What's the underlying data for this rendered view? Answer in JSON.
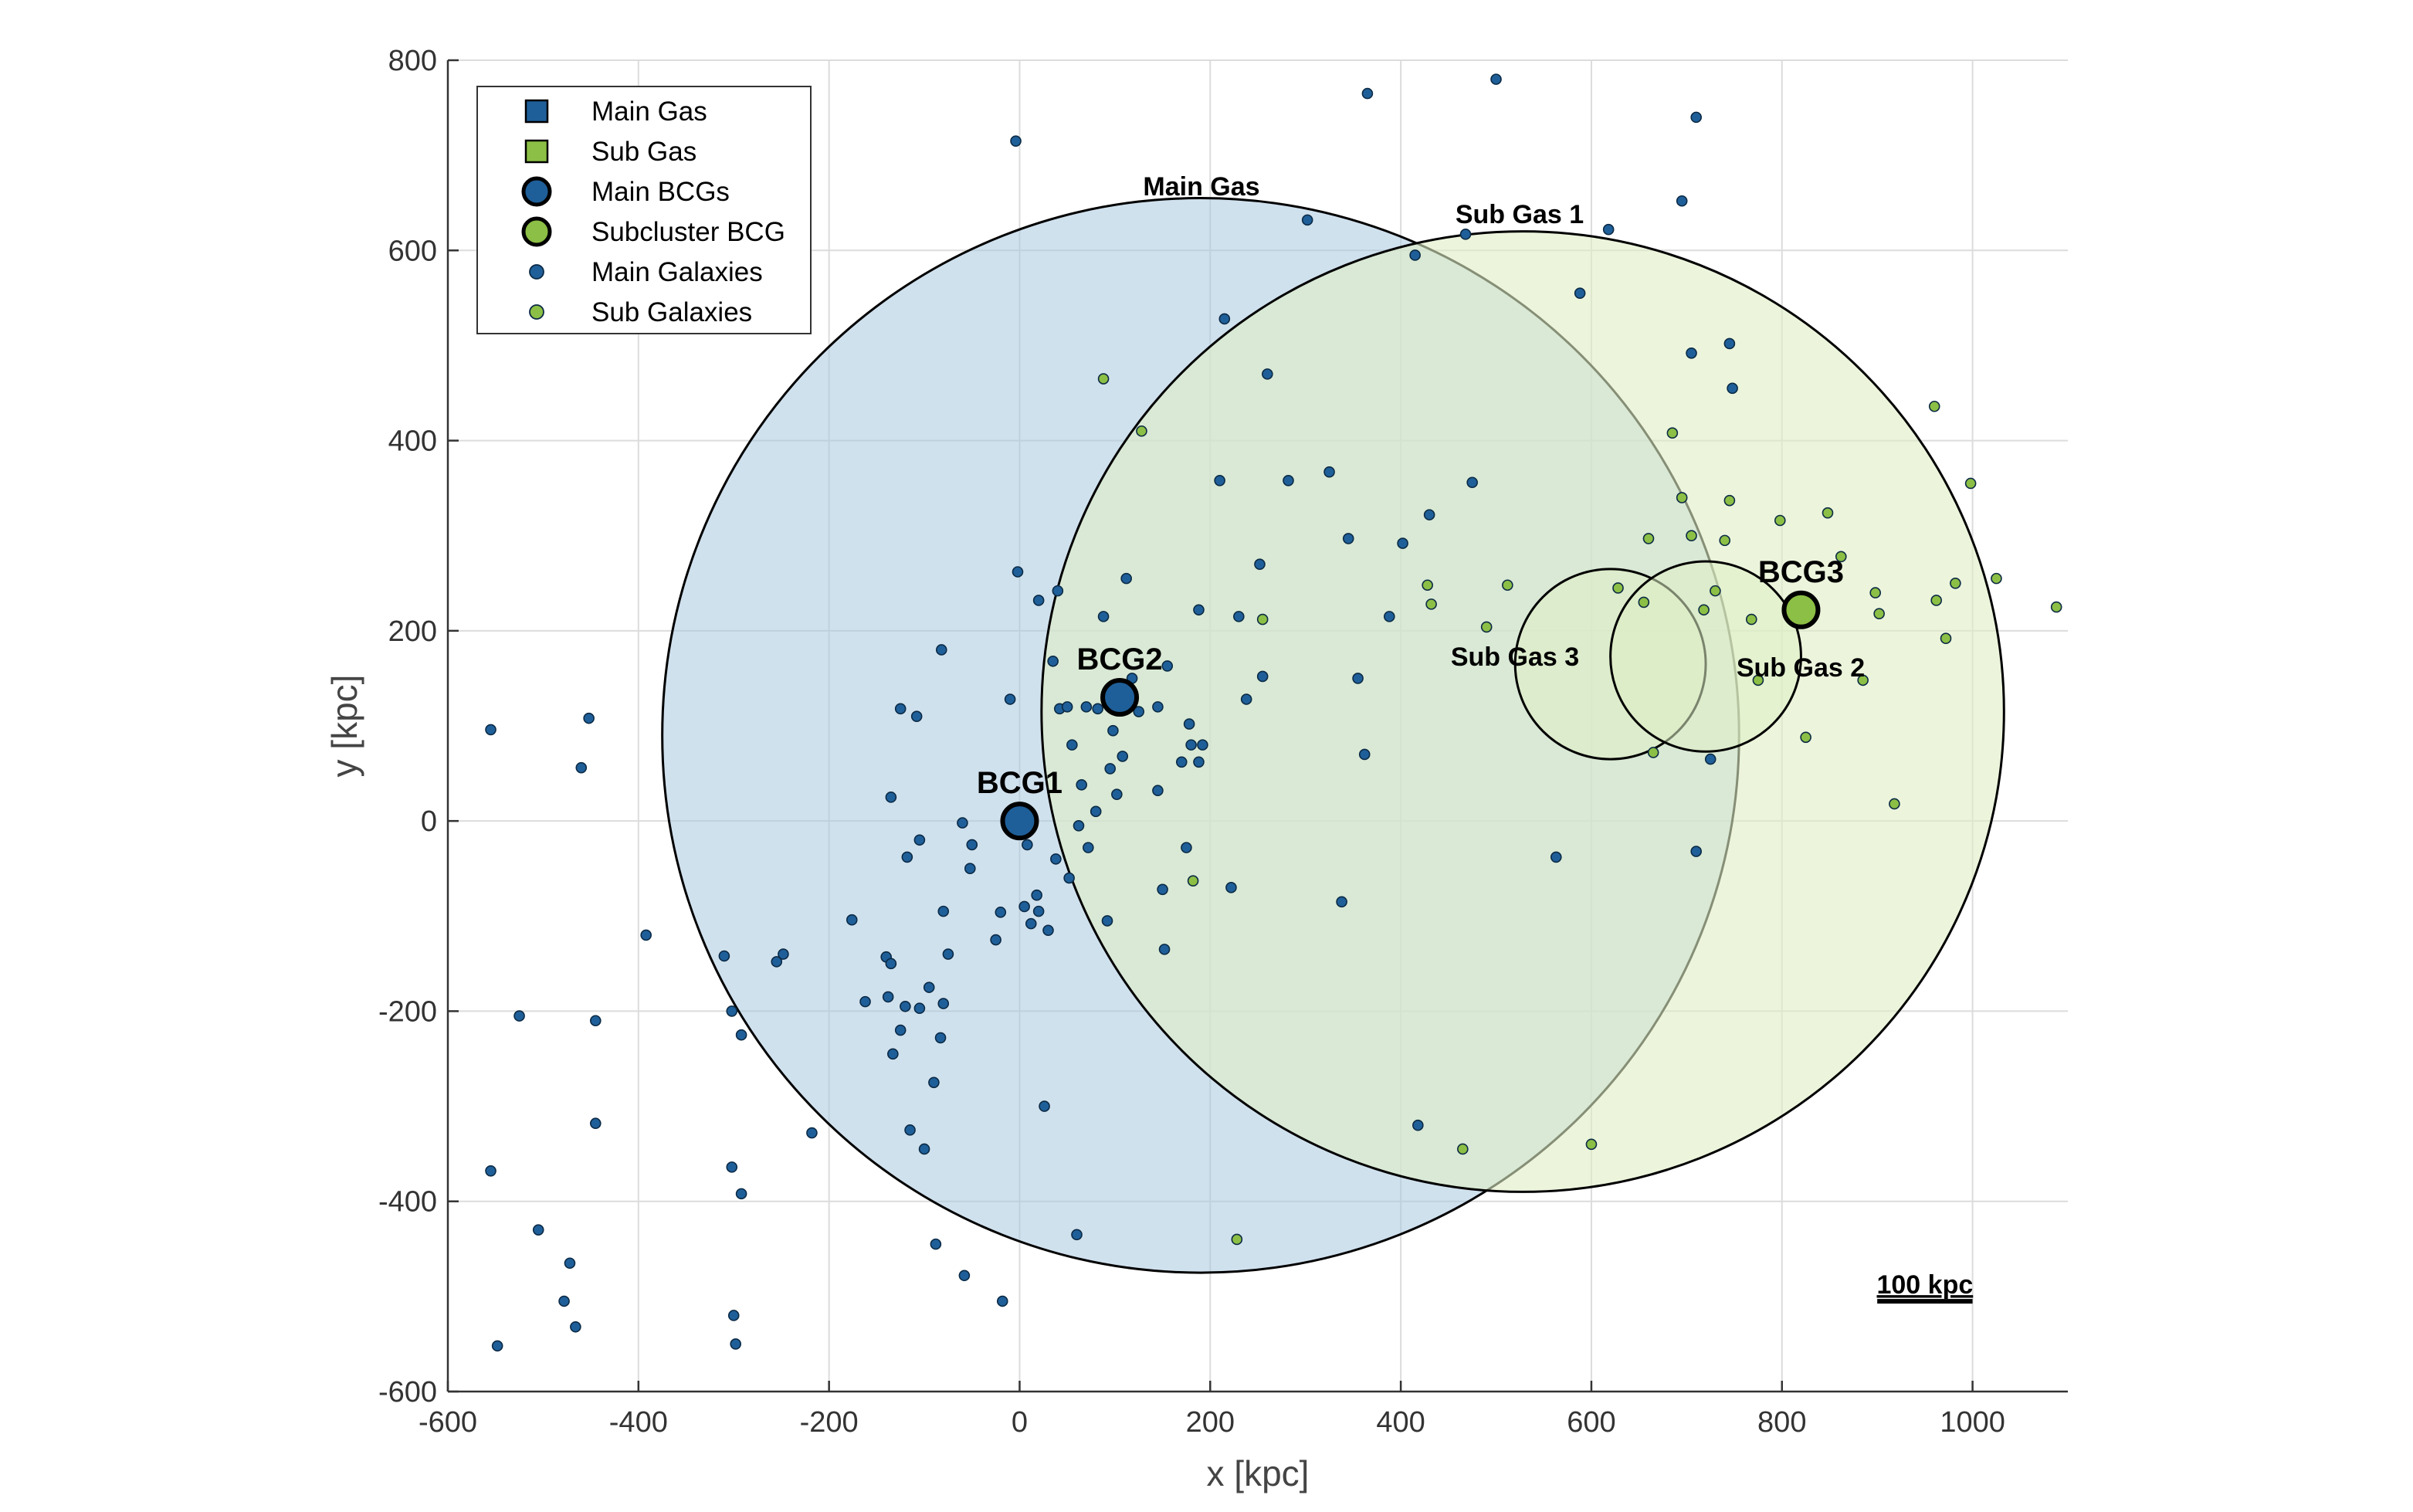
{
  "chart_data": {
    "type": "scatter",
    "title": "",
    "xlabel": "x [kpc]",
    "ylabel": "y [kpc]",
    "xlim": [
      -600,
      1100
    ],
    "ylim": [
      -600,
      800
    ],
    "xticks": [
      -600,
      -400,
      -200,
      0,
      200,
      400,
      600,
      800,
      1000
    ],
    "yticks": [
      -600,
      -400,
      -200,
      0,
      200,
      400,
      600,
      800
    ],
    "xtick_labels": [
      "-600",
      "-400",
      "-200",
      "0",
      "200",
      "400",
      "600",
      "800",
      "1000"
    ],
    "ytick_labels": [
      "-600",
      "-400",
      "-200",
      "0",
      "200",
      "400",
      "600",
      "800"
    ],
    "grid": true,
    "legend_position": "top-left",
    "colors": {
      "main": "#1f5f99",
      "sub": "#8cbf45",
      "main_fill": "#a9c8e0",
      "sub_fill": "#dfeec4",
      "edge": "#000000"
    },
    "legend": [
      {
        "label": "Main Gas",
        "marker": "square",
        "color": "#1f5f99"
      },
      {
        "label": "Sub Gas",
        "marker": "square",
        "color": "#8cbf45"
      },
      {
        "label": "Main BCGs",
        "marker": "circle-large",
        "color": "#1f5f99"
      },
      {
        "label": "Subcluster BCG",
        "marker": "circle-large",
        "color": "#8cbf45"
      },
      {
        "label": "Main Galaxies",
        "marker": "circle-small",
        "color": "#1f5f99"
      },
      {
        "label": "Sub Galaxies",
        "marker": "circle-small",
        "color": "#8cbf45"
      }
    ],
    "gas_regions": [
      {
        "label": "Main Gas",
        "group": "main",
        "cx": 190,
        "cy": 90,
        "r": 565
      },
      {
        "label": "Sub Gas 1",
        "group": "sub",
        "cx": 528,
        "cy": 115,
        "r": 505
      },
      {
        "label": "Sub Gas 3",
        "group": "sub",
        "cx": 620,
        "cy": 165,
        "r": 100
      },
      {
        "label": "Sub Gas 2",
        "group": "sub",
        "cx": 720,
        "cy": 173,
        "r": 100
      }
    ],
    "bcgs": [
      {
        "label": "BCG1",
        "group": "main",
        "x": 0,
        "y": 0
      },
      {
        "label": "BCG2",
        "group": "main",
        "x": 105,
        "y": 130
      },
      {
        "label": "BCG3",
        "group": "sub",
        "x": 820,
        "y": 222
      }
    ],
    "main_galaxies": [
      [
        -555,
        96
      ],
      [
        -460,
        56
      ],
      [
        -452,
        108
      ],
      [
        -392,
        -120
      ],
      [
        -525,
        -205
      ],
      [
        -445,
        -210
      ],
      [
        -445,
        -318
      ],
      [
        -555,
        -368
      ],
      [
        -505,
        -430
      ],
      [
        -472,
        -465
      ],
      [
        -478,
        -505
      ],
      [
        -466,
        -532
      ],
      [
        -548,
        -552
      ],
      [
        -310,
        -142
      ],
      [
        -302,
        -200
      ],
      [
        -292,
        -225
      ],
      [
        -302,
        -364
      ],
      [
        -292,
        -392
      ],
      [
        -300,
        -520
      ],
      [
        -298,
        -550
      ],
      [
        -248,
        -140
      ],
      [
        -255,
        -148
      ],
      [
        -218,
        -328
      ],
      [
        -176,
        -104
      ],
      [
        -162,
        -190
      ],
      [
        -140,
        -143
      ],
      [
        -135,
        -150
      ],
      [
        -138,
        -185
      ],
      [
        -133,
        -245
      ],
      [
        -125,
        -220
      ],
      [
        -120,
        -195
      ],
      [
        -115,
        -325
      ],
      [
        -105,
        -197
      ],
      [
        -100,
        -345
      ],
      [
        -95,
        -175
      ],
      [
        -90,
        -275
      ],
      [
        -88,
        -445
      ],
      [
        -83,
        -228
      ],
      [
        -80,
        -192
      ],
      [
        -75,
        -140
      ],
      [
        -58,
        -478
      ],
      [
        -18,
        -505
      ],
      [
        -135,
        25
      ],
      [
        -125,
        118
      ],
      [
        -118,
        -38
      ],
      [
        -108,
        110
      ],
      [
        -105,
        -20
      ],
      [
        -82,
        180
      ],
      [
        -80,
        -95
      ],
      [
        -60,
        -2
      ],
      [
        -50,
        -25
      ],
      [
        -52,
        -50
      ],
      [
        -25,
        -125
      ],
      [
        -20,
        -96
      ],
      [
        -10,
        128
      ],
      [
        -4,
        715
      ],
      [
        -2,
        262
      ],
      [
        5,
        -90
      ],
      [
        5,
        12
      ],
      [
        8,
        -25
      ],
      [
        12,
        -108
      ],
      [
        18,
        -78
      ],
      [
        20,
        -95
      ],
      [
        20,
        232
      ],
      [
        26,
        -300
      ],
      [
        30,
        -115
      ],
      [
        35,
        168
      ],
      [
        38,
        -40
      ],
      [
        40,
        242
      ],
      [
        42,
        118
      ],
      [
        50,
        120
      ],
      [
        52,
        -60
      ],
      [
        55,
        80
      ],
      [
        60,
        -435
      ],
      [
        62,
        -5
      ],
      [
        65,
        38
      ],
      [
        70,
        120
      ],
      [
        72,
        -28
      ],
      [
        80,
        10
      ],
      [
        82,
        118
      ],
      [
        88,
        215
      ],
      [
        92,
        -105
      ],
      [
        95,
        55
      ],
      [
        98,
        95
      ],
      [
        102,
        28
      ],
      [
        108,
        68
      ],
      [
        112,
        255
      ],
      [
        118,
        150
      ],
      [
        125,
        115
      ],
      [
        145,
        120
      ],
      [
        145,
        32
      ],
      [
        150,
        -72
      ],
      [
        152,
        -135
      ],
      [
        155,
        163
      ],
      [
        170,
        62
      ],
      [
        175,
        -28
      ],
      [
        178,
        102
      ],
      [
        180,
        80
      ],
      [
        188,
        62
      ],
      [
        188,
        222
      ],
      [
        192,
        80
      ],
      [
        210,
        358
      ],
      [
        215,
        528
      ],
      [
        222,
        -70
      ],
      [
        230,
        215
      ],
      [
        238,
        128
      ],
      [
        252,
        270
      ],
      [
        255,
        152
      ],
      [
        260,
        470
      ],
      [
        282,
        358
      ],
      [
        302,
        632
      ],
      [
        325,
        367
      ],
      [
        338,
        -85
      ],
      [
        345,
        297
      ],
      [
        355,
        150
      ],
      [
        362,
        70
      ],
      [
        365,
        765
      ],
      [
        388,
        215
      ],
      [
        402,
        292
      ],
      [
        415,
        595
      ],
      [
        418,
        -320
      ],
      [
        430,
        322
      ],
      [
        468,
        617
      ],
      [
        475,
        356
      ],
      [
        500,
        780
      ],
      [
        563,
        -38
      ],
      [
        588,
        555
      ],
      [
        618,
        622
      ],
      [
        695,
        652
      ],
      [
        705,
        492
      ],
      [
        710,
        740
      ],
      [
        710,
        -32
      ],
      [
        725,
        65
      ],
      [
        745,
        502
      ],
      [
        748,
        455
      ]
    ],
    "sub_galaxies": [
      [
        88,
        465
      ],
      [
        128,
        410
      ],
      [
        182,
        -63
      ],
      [
        228,
        -440
      ],
      [
        255,
        212
      ],
      [
        428,
        248
      ],
      [
        432,
        228
      ],
      [
        465,
        -345
      ],
      [
        490,
        204
      ],
      [
        512,
        248
      ],
      [
        600,
        -340
      ],
      [
        628,
        245
      ],
      [
        655,
        230
      ],
      [
        660,
        297
      ],
      [
        665,
        72
      ],
      [
        685,
        408
      ],
      [
        695,
        340
      ],
      [
        705,
        300
      ],
      [
        718,
        222
      ],
      [
        730,
        242
      ],
      [
        740,
        295
      ],
      [
        745,
        337
      ],
      [
        768,
        212
      ],
      [
        775,
        148
      ],
      [
        798,
        316
      ],
      [
        820,
        210
      ],
      [
        825,
        88
      ],
      [
        848,
        324
      ],
      [
        862,
        278
      ],
      [
        885,
        148
      ],
      [
        898,
        240
      ],
      [
        902,
        218
      ],
      [
        918,
        18
      ],
      [
        960,
        436
      ],
      [
        962,
        232
      ],
      [
        972,
        192
      ],
      [
        982,
        250
      ],
      [
        998,
        355
      ],
      [
        1025,
        255
      ],
      [
        1088,
        225
      ]
    ],
    "scale_bar": {
      "label": "100 kpc",
      "length_kpc": 100,
      "x": 900,
      "y": -497
    }
  }
}
